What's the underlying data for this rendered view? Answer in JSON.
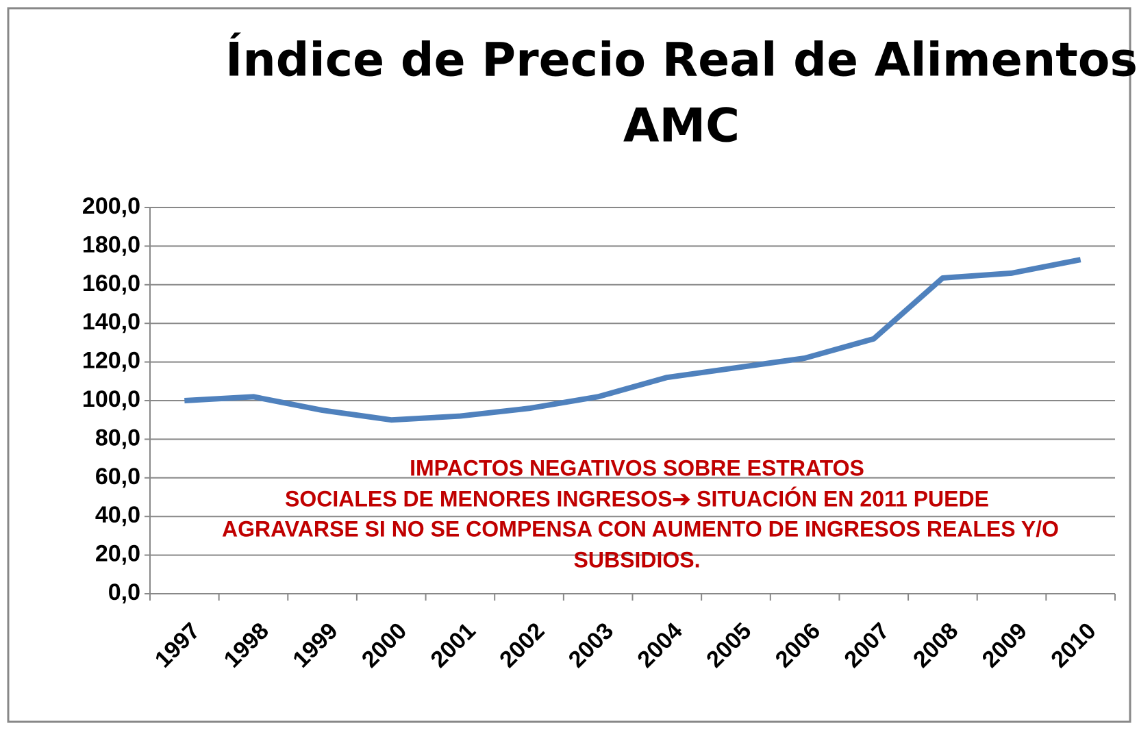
{
  "chart_data": {
    "type": "line",
    "title": [
      "Índice de Precio  Real de Alimentos",
      "AMC"
    ],
    "categories": [
      "1997",
      "1998",
      "1999",
      "2000",
      "2001",
      "2002",
      "2003",
      "2004",
      "2005",
      "2006",
      "2007",
      "2008",
      "2009",
      "2010"
    ],
    "series": [
      {
        "color": "#4f81bd",
        "values": [
          100,
          102,
          95,
          90,
          92,
          96,
          102,
          112,
          117,
          122,
          132,
          163.5,
          166,
          173
        ]
      }
    ],
    "ylim": [
      0,
      200
    ],
    "yticks": [
      {
        "value": 0,
        "label": "0,0"
      },
      {
        "value": 20,
        "label": "20,0"
      },
      {
        "value": 40,
        "label": "40,0"
      },
      {
        "value": 60,
        "label": "60,0"
      },
      {
        "value": 80,
        "label": "80,0"
      },
      {
        "value": 100,
        "label": "100,0"
      },
      {
        "value": 120,
        "label": "120,0"
      },
      {
        "value": 140,
        "label": "140,0"
      },
      {
        "value": 160,
        "label": "160,0"
      },
      {
        "value": 180,
        "label": "180,0"
      },
      {
        "value": 200,
        "label": "200,0"
      }
    ],
    "grid": true,
    "annotation": [
      "IMPACTOS NEGATIVOS SOBRE ESTRATOS",
      "SOCIALES DE MENORES INGRESOS➔ SITUACIÓN EN 2011 PUEDE",
      "AGRAVARSE SI NO SE COMPENSA CON AUMENTO DE INGRESOS REALES Y/O",
      "SUBSIDIOS."
    ],
    "annotation_color": "#c00000"
  }
}
